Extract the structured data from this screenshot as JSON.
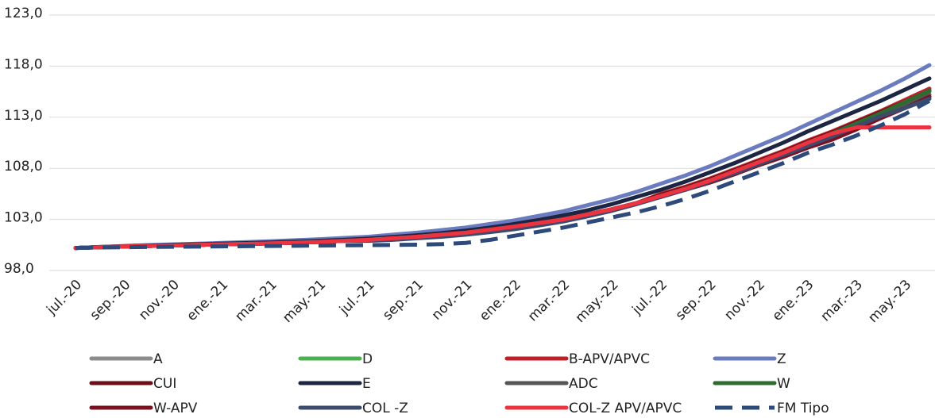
{
  "chart_data": {
    "type": "line",
    "categories": [
      "jul.-20",
      null,
      "sep.-20",
      null,
      "nov.-20",
      null,
      "ene.-21",
      null,
      "mar.-21",
      null,
      "may.-21",
      null,
      "jul.-21",
      null,
      "sep.-21",
      null,
      "nov.-21",
      null,
      "ene.-22",
      null,
      "mar.-22",
      null,
      "may.-22",
      null,
      "jul.-22",
      null,
      "sep.-22",
      null,
      "nov.-22",
      null,
      "ene.-23",
      null,
      "mar.-23",
      null,
      "may.-23",
      null
    ],
    "ylim": [
      98,
      123
    ],
    "yticks": [
      {
        "value": 98,
        "label": "98,0"
      },
      {
        "value": 103,
        "label": "103,0"
      },
      {
        "value": 108,
        "label": "108,0"
      },
      {
        "value": 113,
        "label": "113,0"
      },
      {
        "value": 118,
        "label": "118,0"
      },
      {
        "value": 123,
        "label": "123,0"
      }
    ],
    "grid": true,
    "legend": "bottom",
    "series": [
      {
        "name": "A",
        "color": "#8c8c8c",
        "values": [
          100.2,
          100.28,
          100.35,
          100.4,
          100.45,
          100.5,
          100.55,
          100.6,
          100.65,
          100.72,
          100.8,
          100.9,
          101.0,
          101.15,
          101.3,
          101.5,
          101.7,
          102.0,
          102.3,
          102.65,
          103.0,
          103.5,
          104.0,
          104.6,
          105.3,
          106.0,
          106.8,
          107.7,
          108.6,
          109.5,
          110.5,
          111.3,
          112.2,
          113.1,
          114.0,
          115.0
        ]
      },
      {
        "name": "D",
        "color": "#4caf50",
        "values": [
          100.2,
          100.28,
          100.35,
          100.4,
          100.45,
          100.5,
          100.55,
          100.6,
          100.65,
          100.72,
          100.8,
          100.9,
          101.0,
          101.15,
          101.3,
          101.5,
          101.7,
          102.0,
          102.3,
          102.65,
          103.0,
          103.5,
          104.0,
          104.6,
          105.3,
          106.0,
          106.8,
          107.7,
          108.6,
          109.5,
          110.5,
          111.4,
          112.4,
          113.4,
          114.4,
          115.5
        ]
      },
      {
        "name": "B-APV/APVC",
        "color": "#c0202a",
        "values": [
          100.2,
          100.28,
          100.35,
          100.4,
          100.45,
          100.5,
          100.55,
          100.6,
          100.65,
          100.72,
          100.8,
          100.9,
          101.0,
          101.15,
          101.3,
          101.5,
          101.7,
          102.0,
          102.3,
          102.65,
          103.0,
          103.5,
          104.0,
          104.6,
          105.5,
          106.2,
          107.0,
          107.9,
          108.8,
          109.7,
          110.7,
          111.6,
          112.6,
          113.6,
          114.7,
          115.8
        ]
      },
      {
        "name": "Z",
        "color": "#6a7bbf",
        "values": [
          100.2,
          100.3,
          100.4,
          100.48,
          100.55,
          100.62,
          100.7,
          100.78,
          100.86,
          100.96,
          101.06,
          101.18,
          101.3,
          101.5,
          101.7,
          101.95,
          102.2,
          102.55,
          102.9,
          103.35,
          103.8,
          104.4,
          105.0,
          105.7,
          106.5,
          107.3,
          108.2,
          109.2,
          110.2,
          111.2,
          112.3,
          113.4,
          114.5,
          115.6,
          116.8,
          118.1
        ]
      },
      {
        "name": "CUI",
        "color": "#6b0f1a",
        "values": [
          100.2,
          100.28,
          100.35,
          100.4,
          100.45,
          100.5,
          100.55,
          100.6,
          100.65,
          100.72,
          100.8,
          100.9,
          101.0,
          101.15,
          101.3,
          101.5,
          101.7,
          102.0,
          102.3,
          102.65,
          103.0,
          103.5,
          104.0,
          104.6,
          105.4,
          106.1,
          106.9,
          107.8,
          108.7,
          109.6,
          110.6,
          111.5,
          112.5,
          113.5,
          114.5,
          115.6
        ]
      },
      {
        "name": "E",
        "color": "#1c2541",
        "values": [
          100.2,
          100.3,
          100.38,
          100.44,
          100.5,
          100.56,
          100.62,
          100.68,
          100.74,
          100.82,
          100.9,
          101.0,
          101.12,
          101.28,
          101.45,
          101.66,
          101.9,
          102.2,
          102.55,
          102.95,
          103.4,
          103.9,
          104.5,
          105.2,
          105.9,
          106.7,
          107.6,
          108.5,
          109.5,
          110.5,
          111.6,
          112.6,
          113.6,
          114.6,
          115.7,
          116.8
        ]
      },
      {
        "name": "ADC",
        "color": "#555555",
        "values": [
          100.2,
          100.28,
          100.35,
          100.4,
          100.45,
          100.5,
          100.55,
          100.6,
          100.65,
          100.72,
          100.8,
          100.9,
          101.0,
          101.15,
          101.3,
          101.5,
          101.7,
          102.0,
          102.3,
          102.65,
          103.0,
          103.5,
          104.0,
          104.6,
          105.3,
          106.0,
          106.8,
          107.7,
          108.6,
          109.5,
          110.5,
          111.3,
          112.2,
          113.2,
          114.2,
          115.2
        ]
      },
      {
        "name": "W",
        "color": "#2e6b2e",
        "values": [
          100.2,
          100.28,
          100.35,
          100.4,
          100.45,
          100.5,
          100.55,
          100.6,
          100.65,
          100.72,
          100.8,
          100.9,
          101.0,
          101.15,
          101.3,
          101.5,
          101.7,
          102.0,
          102.3,
          102.65,
          103.0,
          103.5,
          104.0,
          104.6,
          105.3,
          106.0,
          106.8,
          107.7,
          108.6,
          109.5,
          110.5,
          111.4,
          112.4,
          113.4,
          114.5,
          115.6
        ]
      },
      {
        "name": "W-APV",
        "color": "#7a1020",
        "values": [
          100.2,
          100.28,
          100.35,
          100.4,
          100.45,
          100.5,
          100.55,
          100.6,
          100.65,
          100.72,
          100.8,
          100.9,
          101.0,
          101.15,
          101.3,
          101.5,
          101.7,
          102.0,
          102.3,
          102.65,
          103.0,
          103.5,
          104.0,
          104.6,
          105.2,
          105.9,
          106.6,
          107.4,
          108.3,
          109.1,
          110.0,
          110.8,
          111.8,
          112.9,
          113.9,
          115.0
        ]
      },
      {
        "name": "COL -Z",
        "color": "#3c4a6e",
        "values": [
          100.2,
          100.28,
          100.35,
          100.4,
          100.45,
          100.5,
          100.55,
          100.6,
          100.65,
          100.72,
          100.8,
          100.9,
          100.9,
          101.0,
          101.15,
          101.3,
          101.5,
          101.75,
          102.05,
          102.4,
          102.8,
          103.3,
          103.85,
          104.5,
          105.2,
          105.9,
          106.7,
          107.5,
          108.4,
          109.3,
          110.2,
          111.1,
          112.1,
          113.1,
          113.9,
          114.8
        ]
      },
      {
        "name": "COL-Z APV/APVC",
        "color": "#ee3340",
        "values": [
          100.2,
          100.28,
          100.35,
          100.4,
          100.45,
          100.5,
          100.55,
          100.6,
          100.65,
          100.72,
          100.8,
          100.9,
          101.0,
          101.15,
          101.3,
          101.5,
          101.7,
          102.0,
          102.3,
          102.65,
          103.0,
          103.5,
          104.0,
          104.6,
          105.3,
          106.0,
          106.8,
          107.7,
          108.6,
          109.5,
          110.5,
          111.4,
          112.0,
          112.0,
          112.0,
          112.0
        ]
      },
      {
        "name": "FM Tipo",
        "color": "#2d4a7a",
        "dashed": true,
        "values": [
          100.2,
          100.25,
          100.28,
          100.3,
          100.32,
          100.34,
          100.36,
          100.38,
          100.4,
          100.42,
          100.44,
          100.46,
          100.48,
          100.5,
          100.52,
          100.58,
          100.7,
          101.0,
          101.4,
          101.8,
          102.2,
          102.7,
          103.2,
          103.7,
          104.3,
          105.0,
          105.8,
          106.7,
          107.6,
          108.5,
          109.5,
          110.3,
          111.2,
          112.2,
          113.3,
          114.6
        ]
      }
    ]
  }
}
